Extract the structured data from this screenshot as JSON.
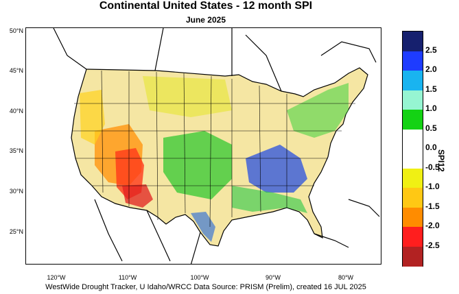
{
  "header": {
    "title": "Continental United States - 12 month SPI",
    "subtitle": "June 2025"
  },
  "footer": {
    "credit": "WestWide Drought Tracker, U Idaho/WRCC Data Source: PRISM (Prelim), created 16 JUL 2025"
  },
  "map": {
    "lat_labels": [
      "50°N",
      "45°N",
      "40°N",
      "35°N",
      "30°N",
      "25°N"
    ],
    "lon_labels": [
      "120°W",
      "110°W",
      "100°W",
      "90°W",
      "80°W"
    ]
  },
  "colorbar": {
    "title": "SPI12",
    "labels": [
      "2.5",
      "2.0",
      "1.5",
      "1.0",
      "0.5",
      "0.0",
      "-0.5",
      "-1.0",
      "-1.5",
      "-2.0",
      "-2.5"
    ],
    "colors": [
      "#16206e",
      "#1e3cff",
      "#19b4f0",
      "#96f5d2",
      "#14d214",
      "#ffffff",
      "#ffffff",
      "#f0f014",
      "#ffc814",
      "#ff8c00",
      "#ff1e1e",
      "#b22222"
    ]
  }
}
